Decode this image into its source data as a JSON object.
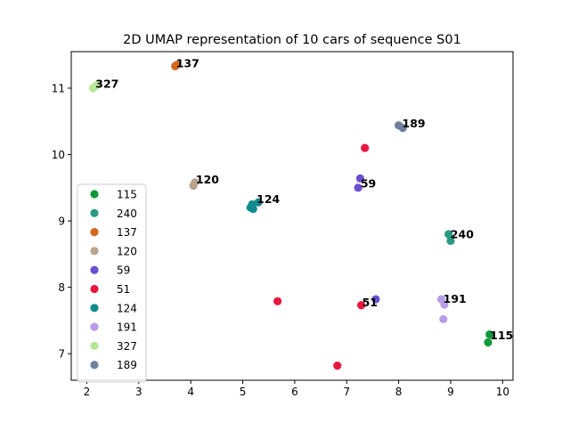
{
  "chart_data": {
    "type": "scatter",
    "title": "2D UMAP representation of 10 cars of sequence S01",
    "xlabel": "",
    "ylabel": "",
    "xlim": [
      1.7,
      10.2
    ],
    "ylim": [
      6.6,
      11.55
    ],
    "xticks": [
      2,
      3,
      4,
      5,
      6,
      7,
      8,
      9,
      10
    ],
    "yticks": [
      7,
      8,
      9,
      10,
      11
    ],
    "grid": false,
    "legend_position": "center-left",
    "series": [
      {
        "name": "115",
        "color": "#0f9a3a",
        "points": [
          [
            9.75,
            7.29
          ],
          [
            9.72,
            7.17
          ]
        ]
      },
      {
        "name": "240",
        "color": "#2a9b82",
        "points": [
          [
            8.96,
            8.8
          ],
          [
            9.0,
            8.7
          ]
        ]
      },
      {
        "name": "137",
        "color": "#d2691e",
        "points": [
          [
            3.7,
            11.33
          ],
          [
            3.73,
            11.35
          ]
        ]
      },
      {
        "name": "120",
        "color": "#b8a48e",
        "points": [
          [
            4.05,
            9.53
          ],
          [
            4.08,
            9.58
          ]
        ]
      },
      {
        "name": "59",
        "color": "#6a4fcf",
        "points": [
          [
            7.26,
            9.64
          ],
          [
            7.22,
            9.5
          ],
          [
            7.56,
            7.82
          ]
        ]
      },
      {
        "name": "51",
        "color": "#e8173f",
        "points": [
          [
            7.35,
            10.1
          ],
          [
            5.67,
            7.79
          ],
          [
            7.28,
            7.73
          ],
          [
            6.82,
            6.82
          ]
        ]
      },
      {
        "name": "124",
        "color": "#118a8e",
        "points": [
          [
            5.18,
            9.25
          ],
          [
            5.15,
            9.2
          ],
          [
            5.2,
            9.18
          ],
          [
            5.3,
            9.28
          ]
        ]
      },
      {
        "name": "191",
        "color": "#b79ce8",
        "points": [
          [
            8.82,
            7.82
          ],
          [
            8.88,
            7.74
          ],
          [
            8.86,
            7.52
          ]
        ]
      },
      {
        "name": "327",
        "color": "#b7e59a",
        "points": [
          [
            2.12,
            11.0
          ],
          [
            2.15,
            11.02
          ],
          [
            2.2,
            11.05
          ]
        ]
      },
      {
        "name": "189",
        "color": "#6f7f9c",
        "points": [
          [
            8.0,
            10.44
          ],
          [
            8.08,
            10.4
          ]
        ]
      }
    ],
    "annotations": [
      {
        "text": "137",
        "x": 3.7,
        "y": 11.33
      },
      {
        "text": "327",
        "x": 2.15,
        "y": 11.02
      },
      {
        "text": "189",
        "x": 8.05,
        "y": 10.42
      },
      {
        "text": "120",
        "x": 4.08,
        "y": 9.58
      },
      {
        "text": "124",
        "x": 5.25,
        "y": 9.28
      },
      {
        "text": "59",
        "x": 7.25,
        "y": 9.52
      },
      {
        "text": "240",
        "x": 8.98,
        "y": 8.75
      },
      {
        "text": "51",
        "x": 7.28,
        "y": 7.73
      },
      {
        "text": "191",
        "x": 8.84,
        "y": 7.78
      },
      {
        "text": "115",
        "x": 9.74,
        "y": 7.23
      }
    ]
  }
}
